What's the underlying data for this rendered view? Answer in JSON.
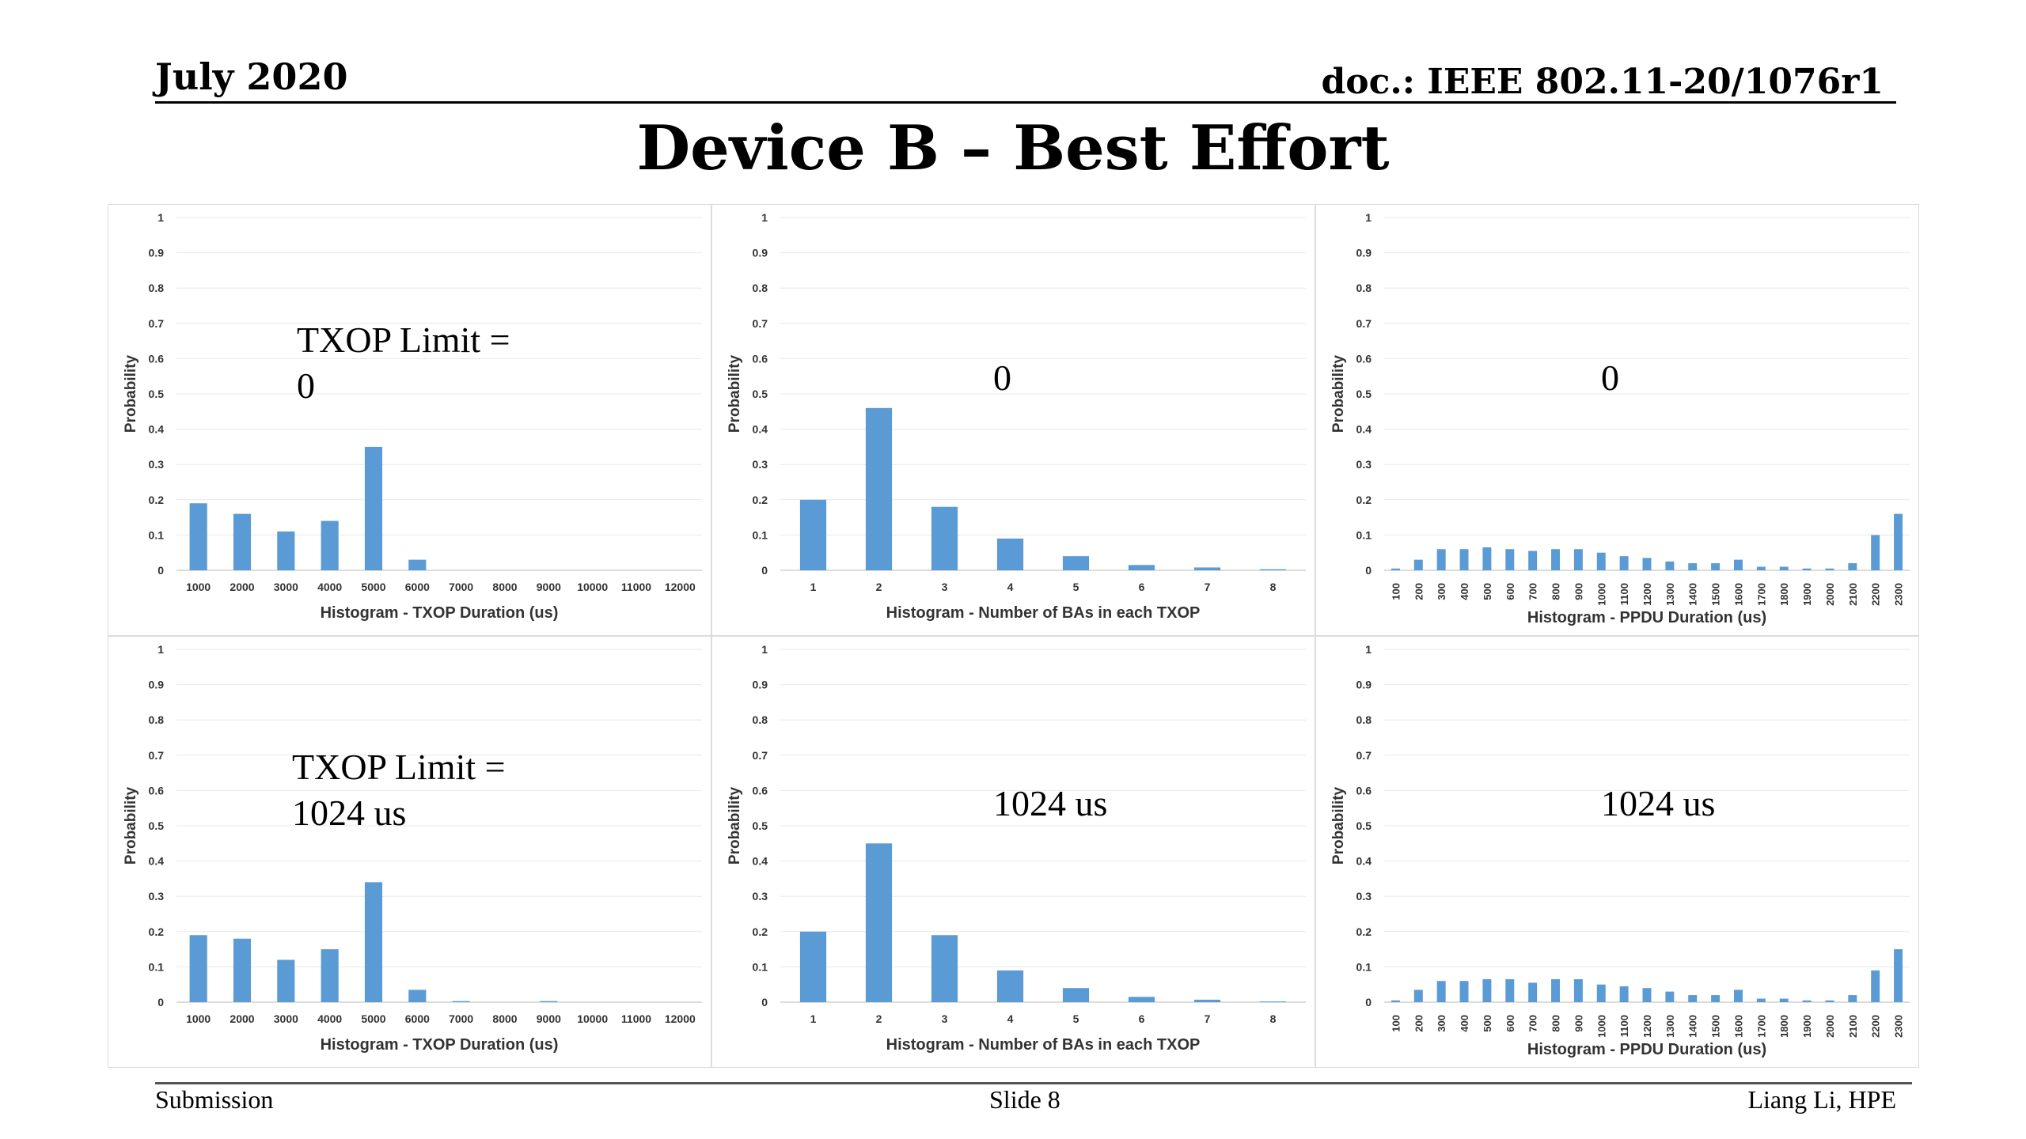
{
  "header": {
    "date": "July 2020",
    "doc": "doc.: IEEE 802.11-20/1076r1"
  },
  "title": "Device B – Best Effort",
  "footer": {
    "left": "Submission",
    "center": "Slide 8",
    "right": "Liang Li, HPE"
  },
  "colors": {
    "bar": "#5b9bd5",
    "grid": "#e8e8e8",
    "text": "#333333"
  },
  "overlays": [
    {
      "lines": [
        "TXOP Limit =",
        "0"
      ]
    },
    {
      "lines": [
        "0"
      ]
    },
    {
      "lines": [
        "0"
      ]
    },
    {
      "lines": [
        "TXOP Limit =",
        "1024 us"
      ]
    },
    {
      "lines": [
        "1024 us"
      ]
    },
    {
      "lines": [
        "1024 us"
      ]
    }
  ],
  "chart_data": [
    {
      "type": "bar",
      "xlabel": "Histogram - TXOP Duration (us)",
      "ylabel": "Probability",
      "ylim": [
        0,
        1
      ],
      "yticks": [
        "0",
        "0.1",
        "0.2",
        "0.3",
        "0.4",
        "0.5",
        "0.6",
        "0.7",
        "0.8",
        "0.9",
        "1"
      ],
      "grid": true,
      "categories": [
        "1000",
        "2000",
        "3000",
        "4000",
        "5000",
        "6000",
        "7000",
        "8000",
        "9000",
        "10000",
        "11000",
        "12000"
      ],
      "values": [
        0.19,
        0.16,
        0.11,
        0.14,
        0.35,
        0.03,
        0,
        0,
        0,
        0,
        0,
        0
      ]
    },
    {
      "type": "bar",
      "xlabel": "Histogram - Number of BAs in each TXOP",
      "ylabel": "Probability",
      "ylim": [
        0,
        1
      ],
      "yticks": [
        "0",
        "0.1",
        "0.2",
        "0.3",
        "0.4",
        "0.5",
        "0.6",
        "0.7",
        "0.8",
        "0.9",
        "1"
      ],
      "grid": true,
      "categories": [
        "1",
        "2",
        "3",
        "4",
        "5",
        "6",
        "7",
        "8"
      ],
      "values": [
        0.2,
        0.46,
        0.18,
        0.09,
        0.04,
        0.015,
        0.008,
        0.003
      ]
    },
    {
      "type": "bar",
      "xlabel": "Histogram - PPDU Duration (us)",
      "ylabel": "Probability",
      "ylim": [
        0,
        1
      ],
      "yticks": [
        "0",
        "0.1",
        "0.2",
        "0.3",
        "0.4",
        "0.5",
        "0.6",
        "0.7",
        "0.8",
        "0.9",
        "1"
      ],
      "grid": true,
      "categories": [
        "100",
        "200",
        "300",
        "400",
        "500",
        "600",
        "700",
        "800",
        "900",
        "1000",
        "1100",
        "1200",
        "1300",
        "1400",
        "1500",
        "1600",
        "1700",
        "1800",
        "1900",
        "2000",
        "2100",
        "2200",
        "2300"
      ],
      "values": [
        0.005,
        0.03,
        0.06,
        0.06,
        0.065,
        0.06,
        0.055,
        0.06,
        0.06,
        0.05,
        0.04,
        0.035,
        0.025,
        0.02,
        0.02,
        0.03,
        0.01,
        0.01,
        0.005,
        0.005,
        0.02,
        0.1,
        0.16
      ]
    },
    {
      "type": "bar",
      "xlabel": "Histogram - TXOP Duration (us)",
      "ylabel": "Probability",
      "ylim": [
        0,
        1
      ],
      "yticks": [
        "0",
        "0.1",
        "0.2",
        "0.3",
        "0.4",
        "0.5",
        "0.6",
        "0.7",
        "0.8",
        "0.9",
        "1"
      ],
      "grid": true,
      "categories": [
        "1000",
        "2000",
        "3000",
        "4000",
        "5000",
        "6000",
        "7000",
        "8000",
        "9000",
        "10000",
        "11000",
        "12000"
      ],
      "values": [
        0.19,
        0.18,
        0.12,
        0.15,
        0.34,
        0.035,
        0.003,
        0,
        0.003,
        0,
        0,
        0
      ]
    },
    {
      "type": "bar",
      "xlabel": "Histogram - Number of BAs in each TXOP",
      "ylabel": "Probability",
      "ylim": [
        0,
        1
      ],
      "yticks": [
        "0",
        "0.1",
        "0.2",
        "0.3",
        "0.4",
        "0.5",
        "0.6",
        "0.7",
        "0.8",
        "0.9",
        "1"
      ],
      "grid": true,
      "categories": [
        "1",
        "2",
        "3",
        "4",
        "5",
        "6",
        "7",
        "8"
      ],
      "values": [
        0.2,
        0.45,
        0.19,
        0.09,
        0.04,
        0.015,
        0.007,
        0.002
      ]
    },
    {
      "type": "bar",
      "xlabel": "Histogram - PPDU Duration (us)",
      "ylabel": "Probability",
      "ylim": [
        0,
        1
      ],
      "yticks": [
        "0",
        "0.1",
        "0.2",
        "0.3",
        "0.4",
        "0.5",
        "0.6",
        "0.7",
        "0.8",
        "0.9",
        "1"
      ],
      "grid": true,
      "categories": [
        "100",
        "200",
        "300",
        "400",
        "500",
        "600",
        "700",
        "800",
        "900",
        "1000",
        "1100",
        "1200",
        "1300",
        "1400",
        "1500",
        "1600",
        "1700",
        "1800",
        "1900",
        "2000",
        "2100",
        "2200",
        "2300"
      ],
      "values": [
        0.005,
        0.035,
        0.06,
        0.06,
        0.065,
        0.065,
        0.055,
        0.065,
        0.065,
        0.05,
        0.045,
        0.04,
        0.03,
        0.02,
        0.02,
        0.035,
        0.01,
        0.01,
        0.005,
        0.005,
        0.02,
        0.09,
        0.15
      ]
    }
  ]
}
